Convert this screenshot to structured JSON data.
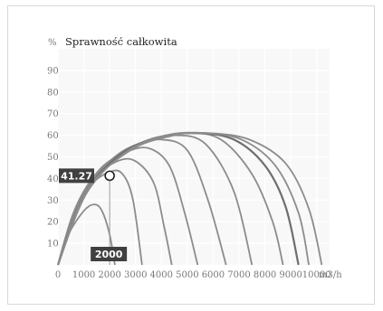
{
  "chart_data": {
    "type": "line",
    "title": "Sprawność całkowita",
    "ylabel": "%",
    "xlabel": "m3/h",
    "xlim": [
      0,
      10500
    ],
    "ylim": [
      0,
      100
    ],
    "x_ticks": [
      "0",
      "1000",
      "2000",
      "3000",
      "4000",
      "5000",
      "6000",
      "7000",
      "8000",
      "9000",
      "10000"
    ],
    "y_ticks": [
      "10",
      "20",
      "30",
      "40",
      "50",
      "60",
      "70",
      "80",
      "90"
    ],
    "grid": true,
    "marker": {
      "x": 2000,
      "y": 41.27,
      "x_label": "2000",
      "y_label": "41.27"
    },
    "series": [
      {
        "points": [
          [
            0,
            0
          ],
          [
            400,
            14
          ],
          [
            1000,
            25
          ],
          [
            1400,
            28
          ],
          [
            1700,
            25
          ],
          [
            2000,
            14
          ],
          [
            2200,
            0
          ]
        ]
      },
      {
        "points": [
          [
            0,
            0
          ],
          [
            500,
            20
          ],
          [
            1200,
            36
          ],
          [
            2000,
            43
          ],
          [
            2500,
            42
          ],
          [
            2900,
            30
          ],
          [
            3250,
            0
          ]
        ]
      },
      {
        "points": [
          [
            0,
            0
          ],
          [
            600,
            24
          ],
          [
            1400,
            40
          ],
          [
            2300,
            48
          ],
          [
            3000,
            48
          ],
          [
            3700,
            38
          ],
          [
            4100,
            18
          ],
          [
            4400,
            0
          ]
        ]
      },
      {
        "points": [
          [
            0,
            0
          ],
          [
            700,
            27
          ],
          [
            1600,
            44
          ],
          [
            2600,
            52
          ],
          [
            3500,
            54
          ],
          [
            4300,
            46
          ],
          [
            4900,
            24
          ],
          [
            5400,
            0
          ]
        ]
      },
      {
        "points": [
          [
            0,
            0
          ],
          [
            800,
            29
          ],
          [
            1800,
            46
          ],
          [
            3000,
            55
          ],
          [
            4000,
            58
          ],
          [
            5000,
            53
          ],
          [
            5800,
            30
          ],
          [
            6500,
            0
          ]
        ]
      },
      {
        "points": [
          [
            0,
            0
          ],
          [
            900,
            30
          ],
          [
            2000,
            48
          ],
          [
            3300,
            57
          ],
          [
            4500,
            60
          ],
          [
            5700,
            56
          ],
          [
            6800,
            34
          ],
          [
            7500,
            0
          ]
        ]
      },
      {
        "points": [
          [
            0,
            0
          ],
          [
            1000,
            31
          ],
          [
            2200,
            50
          ],
          [
            3600,
            58
          ],
          [
            5000,
            61
          ],
          [
            6300,
            58
          ],
          [
            7500,
            42
          ],
          [
            8300,
            20
          ],
          [
            8700,
            0
          ]
        ]
      },
      {
        "points": [
          [
            0,
            0
          ],
          [
            1000,
            32
          ],
          [
            2400,
            51
          ],
          [
            3900,
            59
          ],
          [
            5300,
            61
          ],
          [
            6800,
            58
          ],
          [
            8000,
            46
          ],
          [
            8800,
            27
          ],
          [
            9300,
            0
          ]
        ]
      },
      {
        "points": [
          [
            0,
            0
          ],
          [
            1100,
            33
          ],
          [
            2600,
            52
          ],
          [
            4200,
            60
          ],
          [
            5600,
            61
          ],
          [
            7100,
            58
          ],
          [
            8400,
            46
          ],
          [
            9300,
            24
          ],
          [
            9700,
            0
          ]
        ]
      },
      {
        "points": [
          [
            0,
            0
          ],
          [
            1100,
            34
          ],
          [
            2800,
            53
          ],
          [
            4500,
            60
          ],
          [
            5800,
            61
          ],
          [
            7400,
            58
          ],
          [
            8800,
            47
          ],
          [
            9700,
            26
          ],
          [
            10200,
            0
          ]
        ]
      }
    ]
  }
}
